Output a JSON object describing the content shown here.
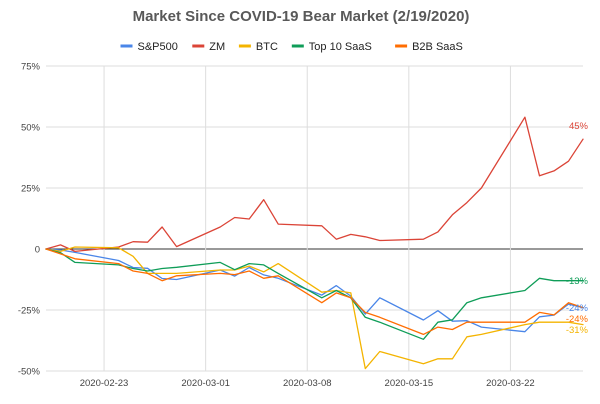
{
  "chart_data": {
    "type": "line",
    "title": "Market Since COVID-19 Bear Market (2/19/2020)",
    "xlabel": "",
    "ylabel": "",
    "ylim": [
      -50,
      75
    ],
    "yticks": [
      -50,
      -25,
      0,
      25,
      50,
      75
    ],
    "ytick_labels": [
      "-50%",
      "-25%",
      "0",
      "25%",
      "50%",
      "75%"
    ],
    "xlim": [
      "2020-02-19",
      "2020-03-27"
    ],
    "xticks": [
      "2020-02-23",
      "2020-03-01",
      "2020-03-08",
      "2020-03-15",
      "2020-03-22"
    ],
    "legend_position": "top",
    "grid": true,
    "x": [
      "2020-02-19",
      "2020-02-20",
      "2020-02-21",
      "2020-02-24",
      "2020-02-25",
      "2020-02-26",
      "2020-02-27",
      "2020-02-28",
      "2020-03-02",
      "2020-03-03",
      "2020-03-04",
      "2020-03-05",
      "2020-03-06",
      "2020-03-09",
      "2020-03-10",
      "2020-03-11",
      "2020-03-12",
      "2020-03-13",
      "2020-03-16",
      "2020-03-17",
      "2020-03-18",
      "2020-03-19",
      "2020-03-20",
      "2020-03-23",
      "2020-03-24",
      "2020-03-25",
      "2020-03-26",
      "2020-03-27"
    ],
    "series": [
      {
        "name": "S&P500",
        "color": "#4a86e8",
        "end_label": "-24%",
        "values": [
          0,
          -0.4,
          -1.4,
          -4.7,
          -7.6,
          -7.9,
          -12.1,
          -12.5,
          -8.6,
          -11.1,
          -7.6,
          -10.6,
          -12.0,
          -18.9,
          -15.0,
          -19.3,
          -26.7,
          -20.0,
          -29.1,
          -25.3,
          -29.6,
          -29.4,
          -32.0,
          -33.9,
          -27.8,
          -27.1,
          -22.6,
          -24.0
        ]
      },
      {
        "name": "ZM",
        "color": "#db4437",
        "end_label": "45%",
        "values": [
          0,
          1.7,
          -1.0,
          0.8,
          3.0,
          2.8,
          9.0,
          1.0,
          9.0,
          12.9,
          12.3,
          20.2,
          10.2,
          9.5,
          4.0,
          6.0,
          5.0,
          3.5,
          4.0,
          7.0,
          14.0,
          19.0,
          25.0,
          54.0,
          30.0,
          32.0,
          36.0,
          45.0
        ]
      },
      {
        "name": "BTC",
        "color": "#f4b400",
        "end_label": "-31%",
        "values": [
          0,
          -1.0,
          0.8,
          0.5,
          -3.0,
          -10.0,
          -10.0,
          -10.0,
          -8.6,
          -8.6,
          -7.0,
          -9.4,
          -6.0,
          -17.7,
          -17.0,
          -18.0,
          -49.0,
          -42.0,
          -47.0,
          -45.0,
          -45.0,
          -36.0,
          -35.0,
          -31.0,
          -30.0,
          -30.0,
          -30.0,
          -31.0
        ]
      },
      {
        "name": "Top 10 SaaS",
        "color": "#0f9d58",
        "end_label": "-13%",
        "values": [
          0,
          -1.5,
          -5.5,
          -6.5,
          -8.0,
          -9.0,
          -8.0,
          -7.5,
          -5.5,
          -8.5,
          -6.0,
          -6.5,
          -10.0,
          -20.0,
          -17.0,
          -20.0,
          -28.0,
          -30.0,
          -37.0,
          -30.0,
          -29.0,
          -22.0,
          -20.0,
          -17.0,
          -12.0,
          -13.0,
          -13.0,
          -13.0
        ]
      },
      {
        "name": "B2B SaaS",
        "color": "#ff6d01",
        "end_label": "-24%",
        "values": [
          0,
          -2.0,
          -4.0,
          -6.0,
          -9.0,
          -10.0,
          -13.0,
          -11.0,
          -10.0,
          -10.5,
          -9.0,
          -12.0,
          -11.0,
          -22.0,
          -18.0,
          -20.0,
          -26.0,
          -28.0,
          -35.0,
          -32.0,
          -33.0,
          -30.0,
          -30.0,
          -30.0,
          -26.0,
          -27.0,
          -22.0,
          -24.0
        ]
      }
    ]
  }
}
